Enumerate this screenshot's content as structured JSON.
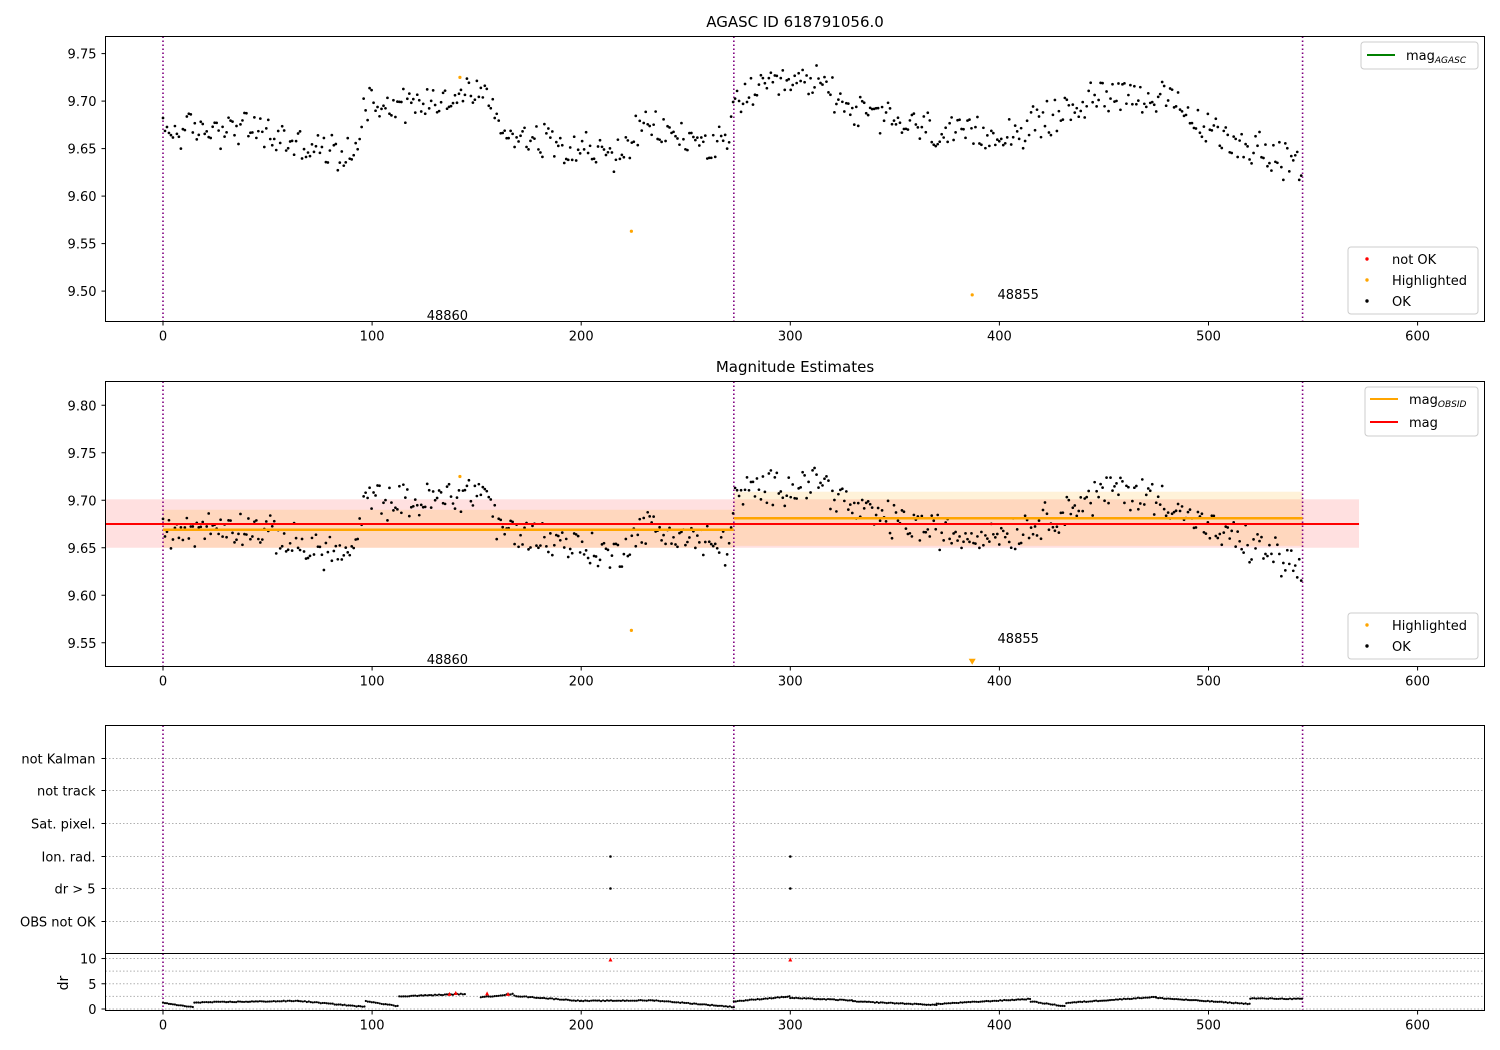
{
  "chart_data": [
    {
      "type": "scatter",
      "title": "AGASC ID 618791056.0",
      "xlim": [
        -27.5,
        632
      ],
      "ylim": [
        9.468,
        9.768
      ],
      "xticks": [
        "0",
        "100",
        "200",
        "300",
        "400",
        "500",
        "600"
      ],
      "yticks": [
        "9.50",
        "9.55",
        "9.60",
        "9.65",
        "9.70",
        "9.75"
      ],
      "vlines": [
        0,
        273,
        545
      ],
      "annotations": [
        {
          "text": "48860",
          "x": 136,
          "y": 9.475
        },
        {
          "text": "48855",
          "x": 409,
          "y": 9.497
        }
      ],
      "legend_lines": [
        {
          "base": "mag",
          "sub": "AGASC",
          "color": "#008000"
        }
      ],
      "legend_points": [
        {
          "label": "not OK",
          "color": "#ff0000"
        },
        {
          "label": "Highlighted",
          "color": "#ffa500"
        },
        {
          "label": "OK",
          "color": "#000000"
        }
      ],
      "highlighted_points": [
        {
          "x": 142,
          "y": 9.725
        },
        {
          "x": 224,
          "y": 9.563
        },
        {
          "x": 387,
          "y": 9.496
        }
      ],
      "ok_series_profile": [
        {
          "x": 0,
          "y": 9.668
        },
        {
          "x": 40,
          "y": 9.672
        },
        {
          "x": 70,
          "y": 9.65
        },
        {
          "x": 92,
          "y": 9.642
        },
        {
          "x": 96,
          "y": 9.7
        },
        {
          "x": 120,
          "y": 9.697
        },
        {
          "x": 155,
          "y": 9.712
        },
        {
          "x": 160,
          "y": 9.67
        },
        {
          "x": 200,
          "y": 9.652
        },
        {
          "x": 215,
          "y": 9.64
        },
        {
          "x": 230,
          "y": 9.672
        },
        {
          "x": 270,
          "y": 9.65
        },
        {
          "x": 274,
          "y": 9.705
        },
        {
          "x": 290,
          "y": 9.712
        },
        {
          "x": 314,
          "y": 9.722
        },
        {
          "x": 330,
          "y": 9.69
        },
        {
          "x": 380,
          "y": 9.662
        },
        {
          "x": 410,
          "y": 9.668
        },
        {
          "x": 455,
          "y": 9.712
        },
        {
          "x": 480,
          "y": 9.7
        },
        {
          "x": 500,
          "y": 9.668
        },
        {
          "x": 530,
          "y": 9.645
        },
        {
          "x": 545,
          "y": 9.625
        }
      ]
    },
    {
      "type": "scatter",
      "title": "Magnitude Estimates",
      "xlim": [
        -27.5,
        632
      ],
      "ylim": [
        9.525,
        9.825
      ],
      "xticks": [
        "0",
        "100",
        "200",
        "300",
        "400",
        "500",
        "600"
      ],
      "yticks": [
        "9.55",
        "9.60",
        "9.65",
        "9.70",
        "9.75",
        "9.80"
      ],
      "vlines": [
        0,
        273,
        545
      ],
      "annotations": [
        {
          "text": "48860",
          "x": 136,
          "y": 9.533
        },
        {
          "text": "48855",
          "x": 409,
          "y": 9.555
        }
      ],
      "legend_lines": [
        {
          "base": "mag",
          "sub": "OBSID",
          "color": "#ffa500"
        },
        {
          "base": "mag",
          "sub": "",
          "color": "#ff0000"
        }
      ],
      "legend_points": [
        {
          "label": "Highlighted",
          "color": "#ffa500"
        },
        {
          "label": "OK",
          "color": "#000000"
        }
      ],
      "mag_line": {
        "y": 9.675,
        "x0": -27.5,
        "x1": 572,
        "band": [
          9.65,
          9.701
        ]
      },
      "obsid_segments": [
        {
          "x0": 0,
          "x1": 273,
          "y": 9.669,
          "band": [
            9.65,
            9.69
          ]
        },
        {
          "x0": 273,
          "x1": 545,
          "y": 9.681,
          "band": [
            9.652,
            9.709
          ]
        }
      ],
      "highlighted_points": [
        {
          "x": 142,
          "y": 9.725
        },
        {
          "x": 224,
          "y": 9.563
        }
      ],
      "offscale_marker": {
        "x": 387,
        "y": 9.529
      }
    },
    {
      "type": "scatter",
      "title": "",
      "xlim": [
        -27.5,
        632
      ],
      "categories": [
        "not Kalman",
        "not track",
        "Sat. pixel.",
        "Ion. rad.",
        "dr > 5",
        "OBS not OK"
      ],
      "vlines": [
        0,
        273,
        545
      ],
      "flag_points": [
        {
          "category": "Ion. rad.",
          "x": [
            214,
            300
          ]
        },
        {
          "category": "dr > 5",
          "x": [
            214,
            300
          ]
        }
      ]
    },
    {
      "type": "scatter",
      "title": "",
      "xlim": [
        -27.5,
        632
      ],
      "ylim": [
        -0.3,
        11
      ],
      "ylabel": "dr",
      "xticks": [
        "0",
        "100",
        "200",
        "300",
        "400",
        "500",
        "600"
      ],
      "yticks": [
        "0",
        "5",
        "10"
      ],
      "vlines": [
        0,
        273,
        545
      ],
      "red_points": [
        {
          "x": 137,
          "y": 3.0
        },
        {
          "x": 140,
          "y": 3.2
        },
        {
          "x": 155,
          "y": 3.1
        },
        {
          "x": 165,
          "y": 3.0
        },
        {
          "x": 214,
          "y": 9.8
        },
        {
          "x": 300,
          "y": 9.8
        }
      ]
    }
  ]
}
